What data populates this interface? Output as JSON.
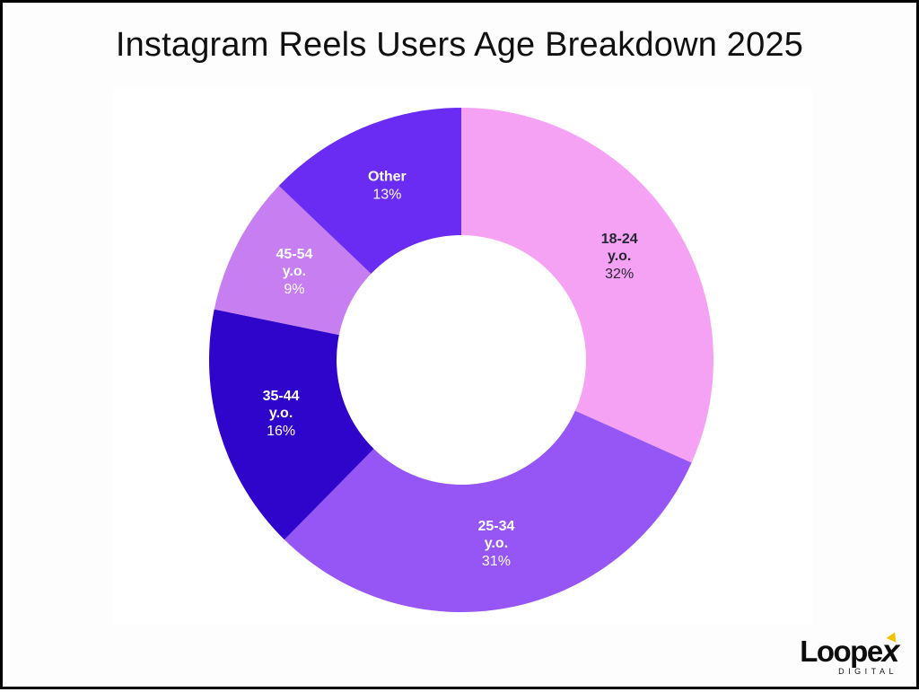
{
  "page": {
    "background": "#fdfdfd",
    "frame_color": "#000000",
    "panel_background": "#ffffff"
  },
  "chart_data": {
    "type": "pie",
    "subtype": "donut",
    "title": "Instagram Reels Users Age Breakdown 2025",
    "start_angle": "12 o'clock",
    "direction": "clockwise",
    "inner_radius_ratio": 0.495,
    "legend": "none",
    "labels_on_slices": true,
    "slices": [
      {
        "label": "18-24 y.o.",
        "label_lines": [
          "18-24",
          "y.o."
        ],
        "value": 32,
        "value_text": "32%",
        "color": "#F5A2F5",
        "text_color": "#262633"
      },
      {
        "label": "25-34 y.o.",
        "label_lines": [
          "25-34",
          "y.o."
        ],
        "value": 31,
        "value_text": "31%",
        "color": "#9655F5",
        "text_color": "#ffffff"
      },
      {
        "label": "35-44 y.o.",
        "label_lines": [
          "35-44",
          "y.o."
        ],
        "value": 16,
        "value_text": "16%",
        "color": "#2F04CB",
        "text_color": "#ffffff"
      },
      {
        "label": "45-54 y.o.",
        "label_lines": [
          "45-54",
          "y.o."
        ],
        "value": 9,
        "value_text": "9%",
        "color": "#C77EF0",
        "text_color": "#ffffff"
      },
      {
        "label": "Other",
        "label_lines": [
          "Other"
        ],
        "value": 13,
        "value_text": "13%",
        "color": "#6A2CF2",
        "text_color": "#ffffff"
      }
    ]
  },
  "logo": {
    "brand_main": "Loope",
    "brand_x": "x",
    "sub": "DIGITAL",
    "accent_color": "#F2C200"
  }
}
